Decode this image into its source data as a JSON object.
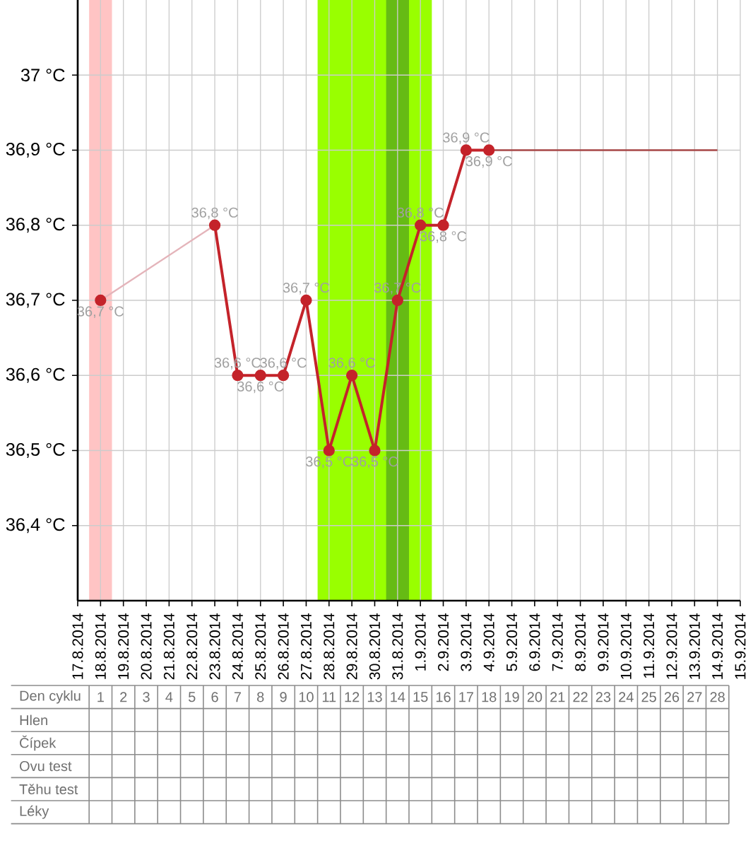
{
  "chart_data": {
    "type": "line",
    "x": [
      "2014-08-18",
      "2014-08-19",
      "2014-08-20",
      "2014-08-21",
      "2014-08-22",
      "2014-08-23",
      "2014-08-24",
      "2014-08-25",
      "2014-08-26",
      "2014-08-27",
      "2014-08-28",
      "2014-08-29",
      "2014-08-30",
      "2014-08-31",
      "2014-09-01",
      "2014-09-02",
      "2014-09-03",
      "2014-09-04"
    ],
    "series": [
      {
        "color": "#c4232a",
        "marker": "circle",
        "line_style": "solid",
        "values": [
          36.7,
          null,
          null,
          null,
          null,
          36.8,
          36.6,
          36.6,
          36.6,
          36.7,
          36.5,
          36.6,
          36.5,
          36.7,
          36.8,
          36.8,
          36.9,
          36.9
        ],
        "value_labels": [
          "36,7 °C",
          null,
          null,
          null,
          null,
          "36,8 °C",
          "36,6 °C",
          "36,6 °C",
          "36,6 °C",
          "36,7 °C",
          "36,5 °C",
          "36,6 °C",
          "36,5 °C",
          "36,7 °C",
          "36,8 °C",
          "36,8 °C",
          "36,9 °C",
          "36,9 °C"
        ]
      },
      {
        "color": "#e4b4ba",
        "marker": "none",
        "line_style": "solid",
        "x": [
          "2014-08-18",
          "2014-08-23"
        ],
        "values": [
          36.7,
          36.8
        ]
      },
      {
        "color": "#a84848",
        "marker": "none",
        "line_style": "solid",
        "x": [
          "2014-09-04",
          "2014-09-14"
        ],
        "values": [
          36.9,
          36.9
        ]
      }
    ],
    "xlim": [
      "2014-08-17",
      "2014-09-15"
    ],
    "xticks": [
      {
        "value": "2014-08-17",
        "label": "17.8.2014"
      },
      {
        "value": "2014-08-18",
        "label": "18.8.2014"
      },
      {
        "value": "2014-08-19",
        "label": "19.8.2014"
      },
      {
        "value": "2014-08-20",
        "label": "20.8.2014"
      },
      {
        "value": "2014-08-21",
        "label": "21.8.2014"
      },
      {
        "value": "2014-08-22",
        "label": "22.8.2014"
      },
      {
        "value": "2014-08-23",
        "label": "23.8.2014"
      },
      {
        "value": "2014-08-24",
        "label": "24.8.2014"
      },
      {
        "value": "2014-08-25",
        "label": "25.8.2014"
      },
      {
        "value": "2014-08-26",
        "label": "26.8.2014"
      },
      {
        "value": "2014-08-27",
        "label": "27.8.2014"
      },
      {
        "value": "2014-08-28",
        "label": "28.8.2014"
      },
      {
        "value": "2014-08-29",
        "label": "29.8.2014"
      },
      {
        "value": "2014-08-30",
        "label": "30.8.2014"
      },
      {
        "value": "2014-08-31",
        "label": "31.8.2014"
      },
      {
        "value": "2014-09-01",
        "label": "1.9.2014"
      },
      {
        "value": "2014-09-02",
        "label": "2.9.2014"
      },
      {
        "value": "2014-09-03",
        "label": "3.9.2014"
      },
      {
        "value": "2014-09-04",
        "label": "4.9.2014"
      },
      {
        "value": "2014-09-05",
        "label": "5.9.2014"
      },
      {
        "value": "2014-09-06",
        "label": "6.9.2014"
      },
      {
        "value": "2014-09-07",
        "label": "7.9.2014"
      },
      {
        "value": "2014-09-08",
        "label": "8.9.2014"
      },
      {
        "value": "2014-09-09",
        "label": "9.9.2014"
      },
      {
        "value": "2014-09-10",
        "label": "10.9.2014"
      },
      {
        "value": "2014-09-11",
        "label": "11.9.2014"
      },
      {
        "value": "2014-09-12",
        "label": "12.9.2014"
      },
      {
        "value": "2014-09-13",
        "label": "13.9.2014"
      },
      {
        "value": "2014-09-14",
        "label": "14.9.2014"
      },
      {
        "value": "2014-09-15",
        "label": "15.9.2014"
      }
    ],
    "ylim": [
      36.3,
      37.1
    ],
    "yticks": [
      {
        "value": 36.4,
        "label": "36,4 °C"
      },
      {
        "value": 36.5,
        "label": "36,5 °C"
      },
      {
        "value": 36.6,
        "label": "36,6 °C"
      },
      {
        "value": 36.7,
        "label": "36,7 °C"
      },
      {
        "value": 36.8,
        "label": "36,8 °C"
      },
      {
        "value": 36.9,
        "label": "36,9 °C"
      },
      {
        "value": 37.0,
        "label": "37 °C"
      }
    ],
    "grid": true,
    "bands": [
      {
        "axis": "x",
        "from": "2014-08-17T12:00",
        "to": "2014-08-18T12:00",
        "color": "#ffc4c4"
      },
      {
        "axis": "x",
        "from": "2014-08-27T12:00",
        "to": "2014-09-01T12:00",
        "color": "#99ff00"
      },
      {
        "axis": "x",
        "from": "2014-08-30T12:00",
        "to": "2014-08-31T12:00",
        "color": "#66bb14"
      }
    ],
    "x2label": "Den cyklu",
    "x2lim": [
      "2014-08-14T02:00",
      "2014-09-14T12:00"
    ],
    "x2ticks": [
      {
        "value": "2014-08-18",
        "label": "1"
      },
      {
        "value": "2014-08-19",
        "label": "2"
      },
      {
        "value": "2014-08-20",
        "label": "3"
      },
      {
        "value": "2014-08-21",
        "label": "4"
      },
      {
        "value": "2014-08-22",
        "label": "5"
      },
      {
        "value": "2014-08-23",
        "label": "6"
      },
      {
        "value": "2014-08-24",
        "label": "7"
      },
      {
        "value": "2014-08-25",
        "label": "8"
      },
      {
        "value": "2014-08-26",
        "label": "9"
      },
      {
        "value": "2014-08-27",
        "label": "10"
      },
      {
        "value": "2014-08-28",
        "label": "11"
      },
      {
        "value": "2014-08-29",
        "label": "12"
      },
      {
        "value": "2014-08-30",
        "label": "13"
      },
      {
        "value": "2014-08-31",
        "label": "14"
      },
      {
        "value": "2014-09-01",
        "label": "15"
      },
      {
        "value": "2014-09-02",
        "label": "16"
      },
      {
        "value": "2014-09-03",
        "label": "17"
      },
      {
        "value": "2014-09-04",
        "label": "18"
      },
      {
        "value": "2014-09-05",
        "label": "19"
      },
      {
        "value": "2014-09-06",
        "label": "20"
      },
      {
        "value": "2014-09-07",
        "label": "21"
      },
      {
        "value": "2014-09-08",
        "label": "22"
      },
      {
        "value": "2014-09-09",
        "label": "23"
      },
      {
        "value": "2014-09-10",
        "label": "24"
      },
      {
        "value": "2014-09-11",
        "label": "25"
      },
      {
        "value": "2014-09-12",
        "label": "26"
      },
      {
        "value": "2014-09-13",
        "label": "27"
      },
      {
        "value": "2014-09-14",
        "label": "28"
      }
    ],
    "annotations": [
      "Hlen",
      "Čípek",
      "Ovu test",
      "Těhu test",
      "Léky"
    ]
  }
}
